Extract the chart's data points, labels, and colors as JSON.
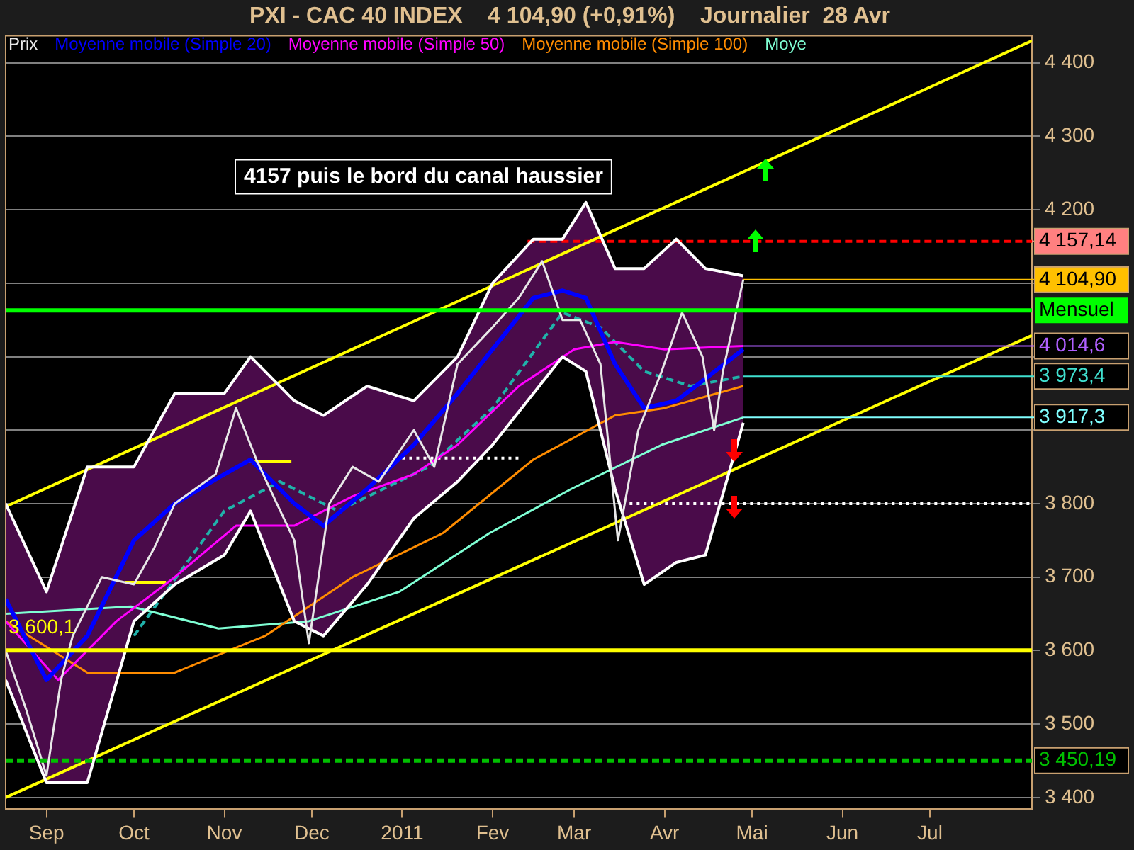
{
  "chart_data": {
    "type": "line",
    "title": "PXI - CAC 40 INDEX    4 104,90 (+0,91%)    Journalier  28 Avr",
    "xlim": [
      "2010-08-18",
      "2011-08-05"
    ],
    "xticks": [
      {
        "value": "2010-09-01",
        "label": "Sep"
      },
      {
        "value": "2010-10-01",
        "label": "Oct"
      },
      {
        "value": "2010-11-01",
        "label": "Nov"
      },
      {
        "value": "2010-12-01",
        "label": "Dec"
      },
      {
        "value": "2011-01-01",
        "label": "2011"
      },
      {
        "value": "2011-02-01",
        "label": "Fev"
      },
      {
        "value": "2011-03-01",
        "label": "Mar"
      },
      {
        "value": "2011-04-01",
        "label": "Avr"
      },
      {
        "value": "2011-05-01",
        "label": "Mai"
      },
      {
        "value": "2011-06-01",
        "label": "Jun"
      },
      {
        "value": "2011-07-01",
        "label": "Jul"
      }
    ],
    "ylim": [
      3384,
      4437
    ],
    "yticks": [
      {
        "value": 3400,
        "label": "3 400"
      },
      {
        "value": 3500,
        "label": "3 500"
      },
      {
        "value": 3600,
        "label": "3 600"
      },
      {
        "value": 3700,
        "label": "3 700"
      },
      {
        "value": 3800,
        "label": "3 800"
      },
      {
        "value": 3900,
        "label": null
      },
      {
        "value": 4000,
        "label": null
      },
      {
        "value": 4100,
        "label": null
      },
      {
        "value": 4200,
        "label": "4 200"
      },
      {
        "value": 4300,
        "label": "4 300"
      },
      {
        "value": 4400,
        "label": "4 400"
      }
    ],
    "grid": "y",
    "legend": "top left",
    "marker": "none",
    "series": [
      {
        "name": "Prix",
        "color": "#e8e8e8",
        "x": [
          "2010-08-18",
          "2010-08-25",
          "2010-09-01",
          "2010-09-06",
          "2010-09-10",
          "2010-09-20",
          "2010-10-01",
          "2010-10-08",
          "2010-10-15",
          "2010-10-22",
          "2010-10-29",
          "2010-11-05",
          "2010-11-12",
          "2010-11-19",
          "2010-11-25",
          "2010-11-30",
          "2010-12-07",
          "2010-12-15",
          "2010-12-24",
          "2011-01-05",
          "2011-01-12",
          "2011-01-20",
          "2011-02-01",
          "2011-02-10",
          "2011-02-18",
          "2011-02-25",
          "2011-03-03",
          "2011-03-10",
          "2011-03-16",
          "2011-03-23",
          "2011-03-31",
          "2011-04-07",
          "2011-04-14",
          "2011-04-18",
          "2011-04-21",
          "2011-04-28"
        ],
        "values": [
          3600,
          3520,
          3430,
          3560,
          3620,
          3700,
          3690,
          3740,
          3800,
          3820,
          3840,
          3930,
          3860,
          3800,
          3750,
          3610,
          3800,
          3850,
          3830,
          3900,
          3850,
          3990,
          4040,
          4080,
          4130,
          4050,
          4050,
          3990,
          3750,
          3900,
          3980,
          4060,
          4000,
          3900,
          3980,
          4104.9
        ]
      },
      {
        "name": "Moyenne mobile (Simple 20)",
        "color": "#0000ff",
        "x": [
          "2010-08-18",
          "2010-09-01",
          "2010-09-15",
          "2010-10-01",
          "2010-10-15",
          "2010-11-01",
          "2010-11-10",
          "2010-11-25",
          "2010-12-05",
          "2010-12-20",
          "2011-01-05",
          "2011-01-20",
          "2011-02-01",
          "2011-02-15",
          "2011-02-25",
          "2011-03-05",
          "2011-03-15",
          "2011-03-25",
          "2011-04-05",
          "2011-04-15",
          "2011-04-28"
        ],
        "values": [
          3670,
          3560,
          3620,
          3750,
          3800,
          3840,
          3860,
          3800,
          3770,
          3820,
          3880,
          3950,
          4010,
          4080,
          4090,
          4080,
          3990,
          3930,
          3940,
          3970,
          4010
        ],
        "lower": [
          3560,
          3420,
          3420,
          3640,
          3690,
          3730,
          3790,
          3640,
          3620,
          3690,
          3780,
          3830,
          3880,
          3950,
          4000,
          3980,
          3820,
          3690,
          3720,
          3730,
          3910
        ],
        "upper": [
          3800,
          3680,
          3850,
          3850,
          3950,
          3950,
          4000,
          3940,
          3920,
          3960,
          3940,
          4000,
          4100,
          4160,
          4160,
          4210,
          4120,
          4120,
          4160,
          4120,
          4110
        ]
      },
      {
        "color": "#ffffff",
        "x": [
          "2010-08-18",
          "2010-09-01",
          "2010-09-15",
          "2010-10-01",
          "2010-10-15",
          "2010-11-01",
          "2010-11-10",
          "2010-11-25",
          "2010-12-05",
          "2010-12-20",
          "2011-01-05",
          "2011-01-20",
          "2011-02-01",
          "2011-02-15",
          "2011-02-25",
          "2011-03-05",
          "2011-03-15",
          "2011-03-25",
          "2011-04-05",
          "2011-04-15",
          "2011-04-28"
        ],
        "values": [
          3560,
          3420,
          3420,
          3640,
          3690,
          3730,
          3790,
          3640,
          3620,
          3690,
          3780,
          3830,
          3880,
          3950,
          4000,
          3980,
          3820,
          3690,
          3720,
          3730,
          3910
        ]
      },
      {
        "color": "#ffffff",
        "x": [
          "2010-08-18",
          "2010-09-01",
          "2010-09-15",
          "2010-10-01",
          "2010-10-15",
          "2010-11-01",
          "2010-11-10",
          "2010-11-25",
          "2010-12-05",
          "2010-12-20",
          "2011-01-05",
          "2011-01-20",
          "2011-02-01",
          "2011-02-15",
          "2011-02-25",
          "2011-03-05",
          "2011-03-15",
          "2011-03-25",
          "2011-04-05",
          "2011-04-15",
          "2011-04-28"
        ],
        "values": [
          3800,
          3680,
          3850,
          3850,
          3950,
          3950,
          4000,
          3940,
          3920,
          3960,
          3940,
          4000,
          4100,
          4160,
          4160,
          4210,
          4120,
          4120,
          4160,
          4120,
          4110
        ]
      },
      {
        "name": "Moyenne mobile (Simple 50)",
        "color": "#ff00ff",
        "x": [
          "2010-08-18",
          "2010-09-05",
          "2010-09-25",
          "2010-10-15",
          "2010-11-05",
          "2010-11-25",
          "2010-12-15",
          "2011-01-05",
          "2011-01-20",
          "2011-02-10",
          "2011-03-01",
          "2011-03-15",
          "2011-04-01",
          "2011-04-28"
        ],
        "values": [
          3640,
          3560,
          3640,
          3700,
          3770,
          3770,
          3810,
          3840,
          3880,
          3960,
          4010,
          4020,
          4010,
          4014.6
        ]
      },
      {
        "name": "Moyenne mobile (Simple 100)",
        "color": "#ff8c00",
        "x": [
          "2010-08-18",
          "2010-09-15",
          "2010-10-15",
          "2010-11-15",
          "2010-12-15",
          "2011-01-15",
          "2011-02-15",
          "2011-03-15",
          "2011-04-01",
          "2011-04-28"
        ],
        "values": [
          3640,
          3570,
          3570,
          3620,
          3700,
          3760,
          3860,
          3920,
          3930,
          3960
        ]
      },
      {
        "name": "Moye",
        "color": "#7fffd4",
        "x": [
          "2010-08-18",
          "2010-09-30",
          "2010-10-30",
          "2010-11-30",
          "2010-12-31",
          "2011-01-31",
          "2011-02-28",
          "2011-03-31",
          "2011-04-28"
        ],
        "values": [
          3650,
          3660,
          3630,
          3640,
          3680,
          3760,
          3820,
          3880,
          3917.3
        ]
      },
      {
        "color": "#20b2aa",
        "line_style": "dashed",
        "x": [
          "2010-10-01",
          "2010-11-01",
          "2010-11-20",
          "2010-12-10",
          "2011-01-10",
          "2011-02-01",
          "2011-02-25",
          "2011-03-10",
          "2011-03-25",
          "2011-04-10",
          "2011-04-28"
        ],
        "values": [
          3620,
          3790,
          3830,
          3790,
          3850,
          3930,
          4060,
          4040,
          3980,
          3960,
          3973.4
        ]
      },
      {
        "type": "line",
        "color": "#ffff00",
        "x": [
          "2010-08-18",
          "2011-08-05"
        ],
        "values": [
          3796,
          4430
        ]
      },
      {
        "type": "line",
        "color": "#ffff00",
        "x": [
          "2010-08-18",
          "2011-08-05"
        ],
        "values": [
          3400,
          4029
        ]
      },
      {
        "type": "line",
        "color": "#ffff00",
        "x": [
          "2010-11-09",
          "2010-11-24"
        ],
        "values": [
          3857,
          3857
        ]
      },
      {
        "type": "line",
        "color": "#ffff00",
        "x": [
          "2010-09-28",
          "2010-10-12"
        ],
        "values": [
          3693,
          3693
        ]
      },
      {
        "type": "line",
        "color": "#ffffff",
        "line_style": "dotted",
        "x": [
          "2011-01-01",
          "2011-02-10"
        ],
        "values": [
          3862,
          3862
        ]
      },
      {
        "type": "line",
        "color": "#ffffff",
        "line_style": "dotted",
        "x": [
          "2011-03-20",
          "2011-08-05"
        ],
        "values": [
          3800,
          3800
        ]
      },
      {
        "type": "line",
        "color": "#ff0000",
        "line_style": "dashed",
        "x": [
          "2011-02-13",
          "2011-08-05"
        ],
        "values": [
          4157.14,
          4157.14
        ]
      }
    ],
    "ref_lines": [
      {
        "axis": "y",
        "value": 4063,
        "label": "Mensuel",
        "color": "#00ff00"
      },
      {
        "axis": "y",
        "value": 3600.1,
        "label": "3 600,1",
        "color": "#ffff00"
      },
      {
        "axis": "y",
        "value": 3450.19,
        "label": "3 450,19",
        "color": "#00c000",
        "line_style": "dashed"
      }
    ],
    "annotations": [
      "4157 puis le bord du canal haussier",
      {
        "text": "4 157,14",
        "x": "2011-08-05",
        "y": 4157.14
      },
      {
        "text": "4 104,90",
        "x": "2011-04-28",
        "y": 4104.9
      },
      {
        "text": "4 014,6",
        "x": "2011-04-28",
        "y": 4014.6
      },
      {
        "text": "3 973,4",
        "x": "2011-04-28",
        "y": 3973.4
      },
      {
        "text": "3 917,3",
        "x": "2011-04-28",
        "y": 3917.3
      }
    ]
  }
}
